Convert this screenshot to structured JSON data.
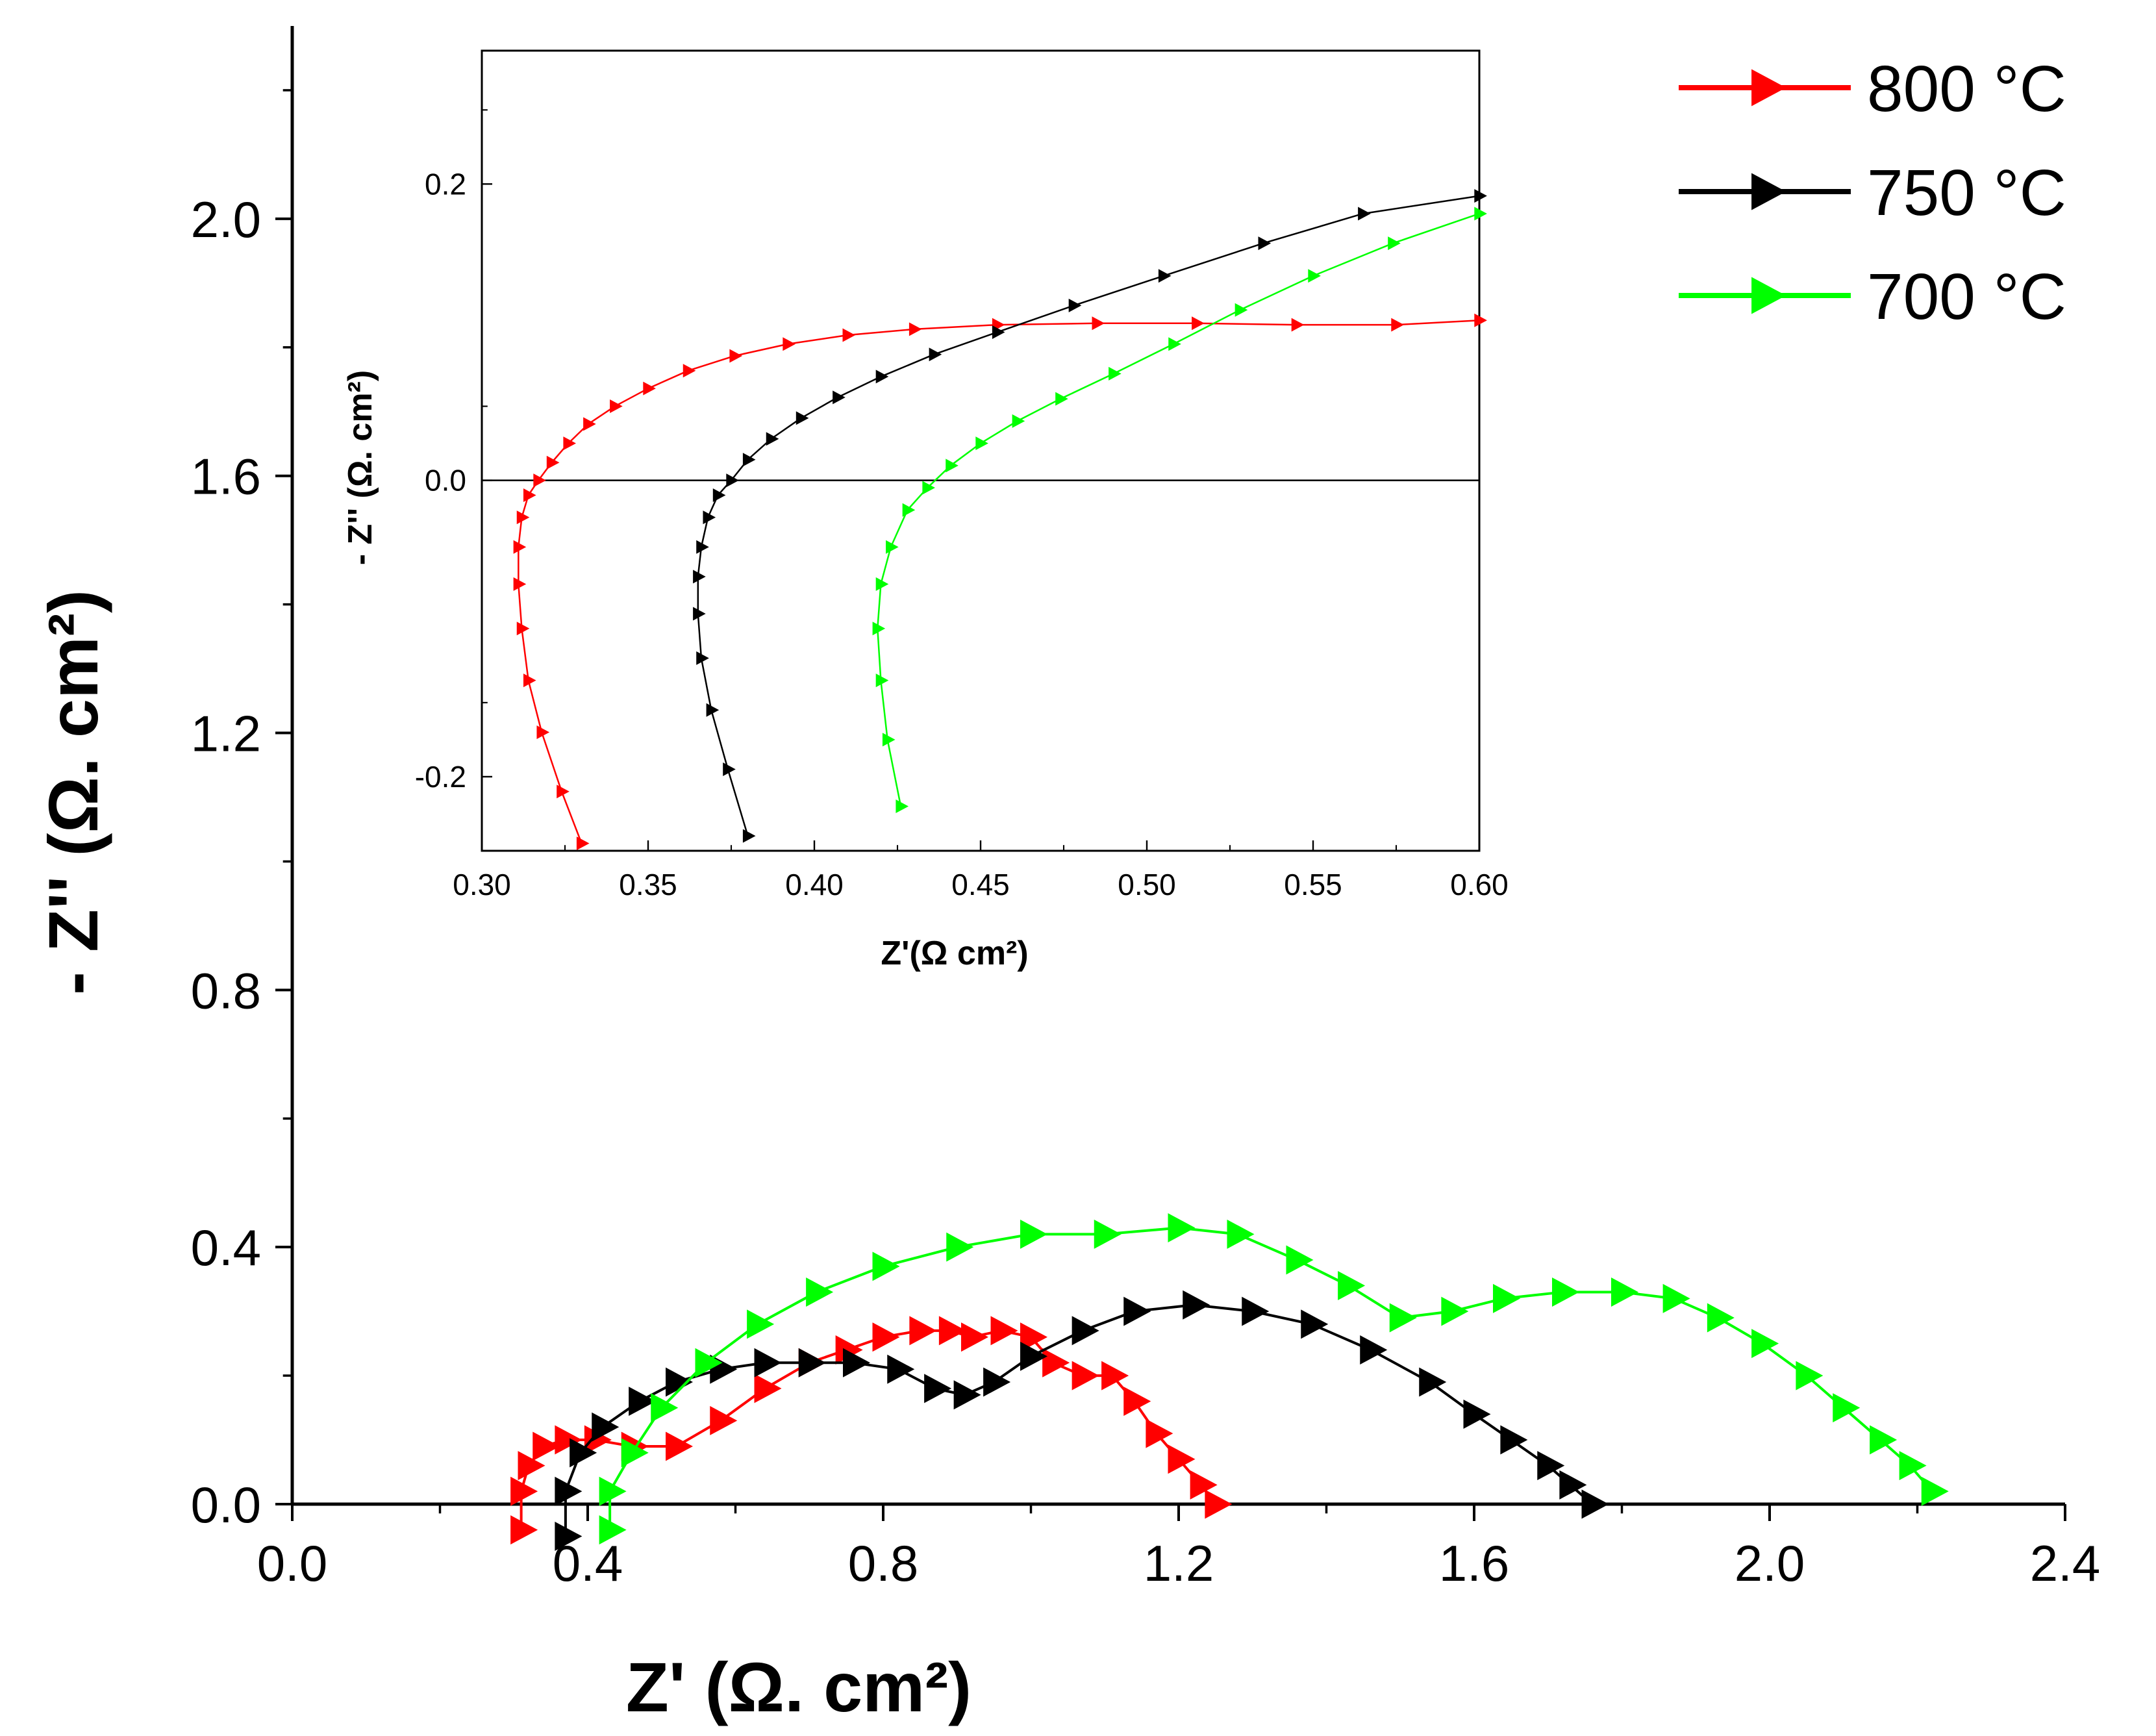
{
  "chart_data": [
    {
      "id": "main",
      "type": "scatter",
      "title": "",
      "xlabel": "Z' (Ω. cm²)",
      "ylabel": "- Z'' (Ω. cm²)",
      "xlim": [
        0.0,
        2.4
      ],
      "ylim": [
        0.0,
        2.3
      ],
      "xticks": [
        "0.0",
        "0.4",
        "0.8",
        "1.2",
        "1.6",
        "2.0",
        "2.4"
      ],
      "yticks": [
        "0.0",
        "0.4",
        "0.8",
        "1.2",
        "1.6",
        "2.0"
      ],
      "grid": false,
      "legend": "top-right",
      "series": [
        {
          "name": "800 °C",
          "color": "#ff0000",
          "marker": "right-triangle",
          "x": [
            0.31,
            0.31,
            0.32,
            0.34,
            0.37,
            0.41,
            0.46,
            0.52,
            0.58,
            0.64,
            0.7,
            0.75,
            0.8,
            0.85,
            0.89,
            0.92,
            0.96,
            1.0,
            1.03,
            1.07,
            1.11,
            1.14,
            1.17,
            1.2,
            1.23,
            1.25
          ],
          "y": [
            -0.04,
            0.02,
            0.06,
            0.09,
            0.1,
            0.1,
            0.09,
            0.09,
            0.13,
            0.18,
            0.22,
            0.24,
            0.26,
            0.27,
            0.27,
            0.26,
            0.27,
            0.26,
            0.22,
            0.2,
            0.2,
            0.16,
            0.11,
            0.07,
            0.03,
            0.0
          ]
        },
        {
          "name": "750 °C",
          "color": "#000000",
          "marker": "right-triangle",
          "x": [
            0.37,
            0.37,
            0.39,
            0.42,
            0.47,
            0.52,
            0.58,
            0.64,
            0.7,
            0.76,
            0.82,
            0.87,
            0.91,
            0.95,
            1.0,
            1.07,
            1.14,
            1.22,
            1.3,
            1.38,
            1.46,
            1.54,
            1.6,
            1.65,
            1.7,
            1.73,
            1.76
          ],
          "y": [
            -0.05,
            0.02,
            0.08,
            0.12,
            0.16,
            0.19,
            0.21,
            0.22,
            0.22,
            0.22,
            0.21,
            0.18,
            0.17,
            0.19,
            0.23,
            0.27,
            0.3,
            0.31,
            0.3,
            0.28,
            0.24,
            0.19,
            0.14,
            0.1,
            0.06,
            0.03,
            0.0
          ]
        },
        {
          "name": "700 °C",
          "color": "#00ff00",
          "marker": "right-triangle",
          "x": [
            0.43,
            0.43,
            0.46,
            0.5,
            0.56,
            0.63,
            0.71,
            0.8,
            0.9,
            1.0,
            1.1,
            1.2,
            1.28,
            1.36,
            1.43,
            1.5,
            1.57,
            1.64,
            1.72,
            1.8,
            1.87,
            1.93,
            1.99,
            2.05,
            2.1,
            2.15,
            2.19,
            2.22
          ],
          "y": [
            -0.04,
            0.02,
            0.08,
            0.15,
            0.22,
            0.28,
            0.33,
            0.37,
            0.4,
            0.42,
            0.42,
            0.43,
            0.42,
            0.38,
            0.34,
            0.29,
            0.3,
            0.32,
            0.33,
            0.33,
            0.32,
            0.29,
            0.25,
            0.2,
            0.15,
            0.1,
            0.06,
            0.02
          ]
        }
      ]
    },
    {
      "id": "inset",
      "type": "scatter",
      "title": "",
      "xlabel": "Z'(Ω cm²)",
      "ylabel": "- Z'' (Ω. cm²)",
      "xlim": [
        0.3,
        0.6
      ],
      "ylim": [
        -0.25,
        0.29
      ],
      "xticks": [
        "0.30",
        "0.35",
        "0.40",
        "0.45",
        "0.50",
        "0.55",
        "0.60"
      ],
      "yticks": [
        "-0.2",
        "0.0",
        "0.2"
      ],
      "zero_line": true,
      "grid": false,
      "series": [
        {
          "name": "800 °C",
          "color": "#ff0000",
          "marker": "right-triangle",
          "x": [
            0.33,
            0.324,
            0.318,
            0.314,
            0.312,
            0.311,
            0.311,
            0.312,
            0.314,
            0.317,
            0.321,
            0.326,
            0.332,
            0.34,
            0.35,
            0.362,
            0.376,
            0.392,
            0.41,
            0.43,
            0.455,
            0.485,
            0.515,
            0.545,
            0.575,
            0.6
          ],
          "y": [
            -0.245,
            -0.21,
            -0.17,
            -0.135,
            -0.1,
            -0.07,
            -0.045,
            -0.025,
            -0.01,
            0.0,
            0.012,
            0.025,
            0.038,
            0.05,
            0.062,
            0.074,
            0.084,
            0.092,
            0.098,
            0.102,
            0.105,
            0.106,
            0.106,
            0.105,
            0.105,
            0.108
          ]
        },
        {
          "name": "750 °C",
          "color": "#000000",
          "marker": "right-triangle",
          "x": [
            0.38,
            0.374,
            0.369,
            0.366,
            0.365,
            0.365,
            0.366,
            0.368,
            0.371,
            0.375,
            0.38,
            0.387,
            0.396,
            0.407,
            0.42,
            0.436,
            0.455,
            0.478,
            0.505,
            0.535,
            0.565,
            0.6
          ],
          "y": [
            -0.24,
            -0.195,
            -0.155,
            -0.12,
            -0.09,
            -0.065,
            -0.045,
            -0.025,
            -0.01,
            0.0,
            0.014,
            0.028,
            0.042,
            0.056,
            0.07,
            0.085,
            0.1,
            0.118,
            0.138,
            0.16,
            0.18,
            0.192
          ]
        },
        {
          "name": "700 °C",
          "color": "#00ff00",
          "marker": "right-triangle",
          "x": [
            0.426,
            0.422,
            0.42,
            0.419,
            0.42,
            0.423,
            0.428,
            0.434,
            0.441,
            0.45,
            0.461,
            0.474,
            0.49,
            0.508,
            0.528,
            0.55,
            0.574,
            0.6
          ],
          "y": [
            -0.22,
            -0.175,
            -0.135,
            -0.1,
            -0.07,
            -0.045,
            -0.02,
            -0.005,
            0.01,
            0.025,
            0.04,
            0.055,
            0.072,
            0.092,
            0.115,
            0.138,
            0.16,
            0.18
          ]
        }
      ]
    }
  ]
}
